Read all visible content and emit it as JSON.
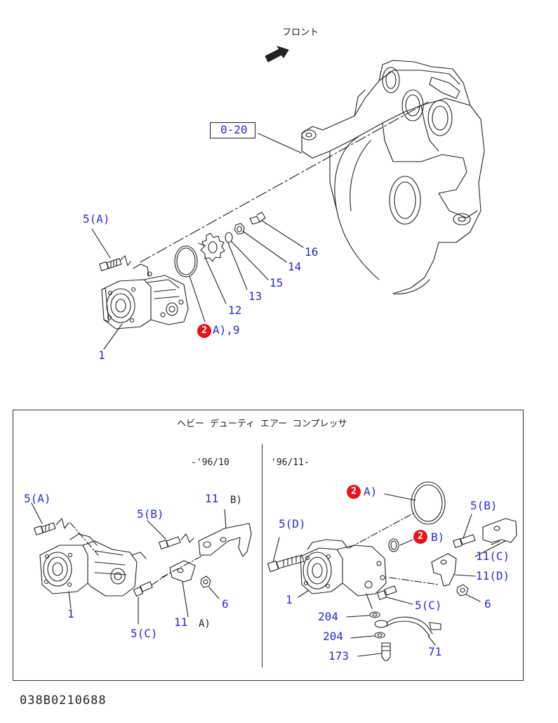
{
  "header": {
    "front_label": "フロント"
  },
  "main_diagram": {
    "ref_box": "0-20",
    "labels": {
      "l5a": "5(A)",
      "l1": "1",
      "l2a9": "A),9",
      "l12": "12",
      "l13": "13",
      "l14": "14",
      "l15": "15",
      "l16": "16"
    },
    "badge": "2"
  },
  "inset": {
    "title": "ヘビー デューティ エアー コンプレッサ",
    "left_period": "-'96/10",
    "right_period": "'96/11-",
    "left_labels": {
      "l5a": "5(A)",
      "l5b": "5(B)",
      "l11b_num": "11",
      "l11b_letter": "B)",
      "l1": "1",
      "l6": "6",
      "l11a_num": "11",
      "l11a_letter": "A)",
      "l5c": "5(C)"
    },
    "right_labels": {
      "l2a": "A)",
      "l2b": "B)",
      "l5b": "5(B)",
      "l5d": "5(D)",
      "l11c": "11(C)",
      "l11d": "11(D)",
      "l1": "1",
      "l5c": "5(C)",
      "l6": "6",
      "l204a": "204",
      "l204b": "204",
      "l173": "173",
      "l71": "71"
    },
    "badges": [
      "2",
      "2"
    ]
  },
  "footer": {
    "drawing_code": "038B0210688"
  },
  "colors": {
    "label": "#2b2bd6",
    "badge": "#e8141b",
    "line": "#222222"
  }
}
